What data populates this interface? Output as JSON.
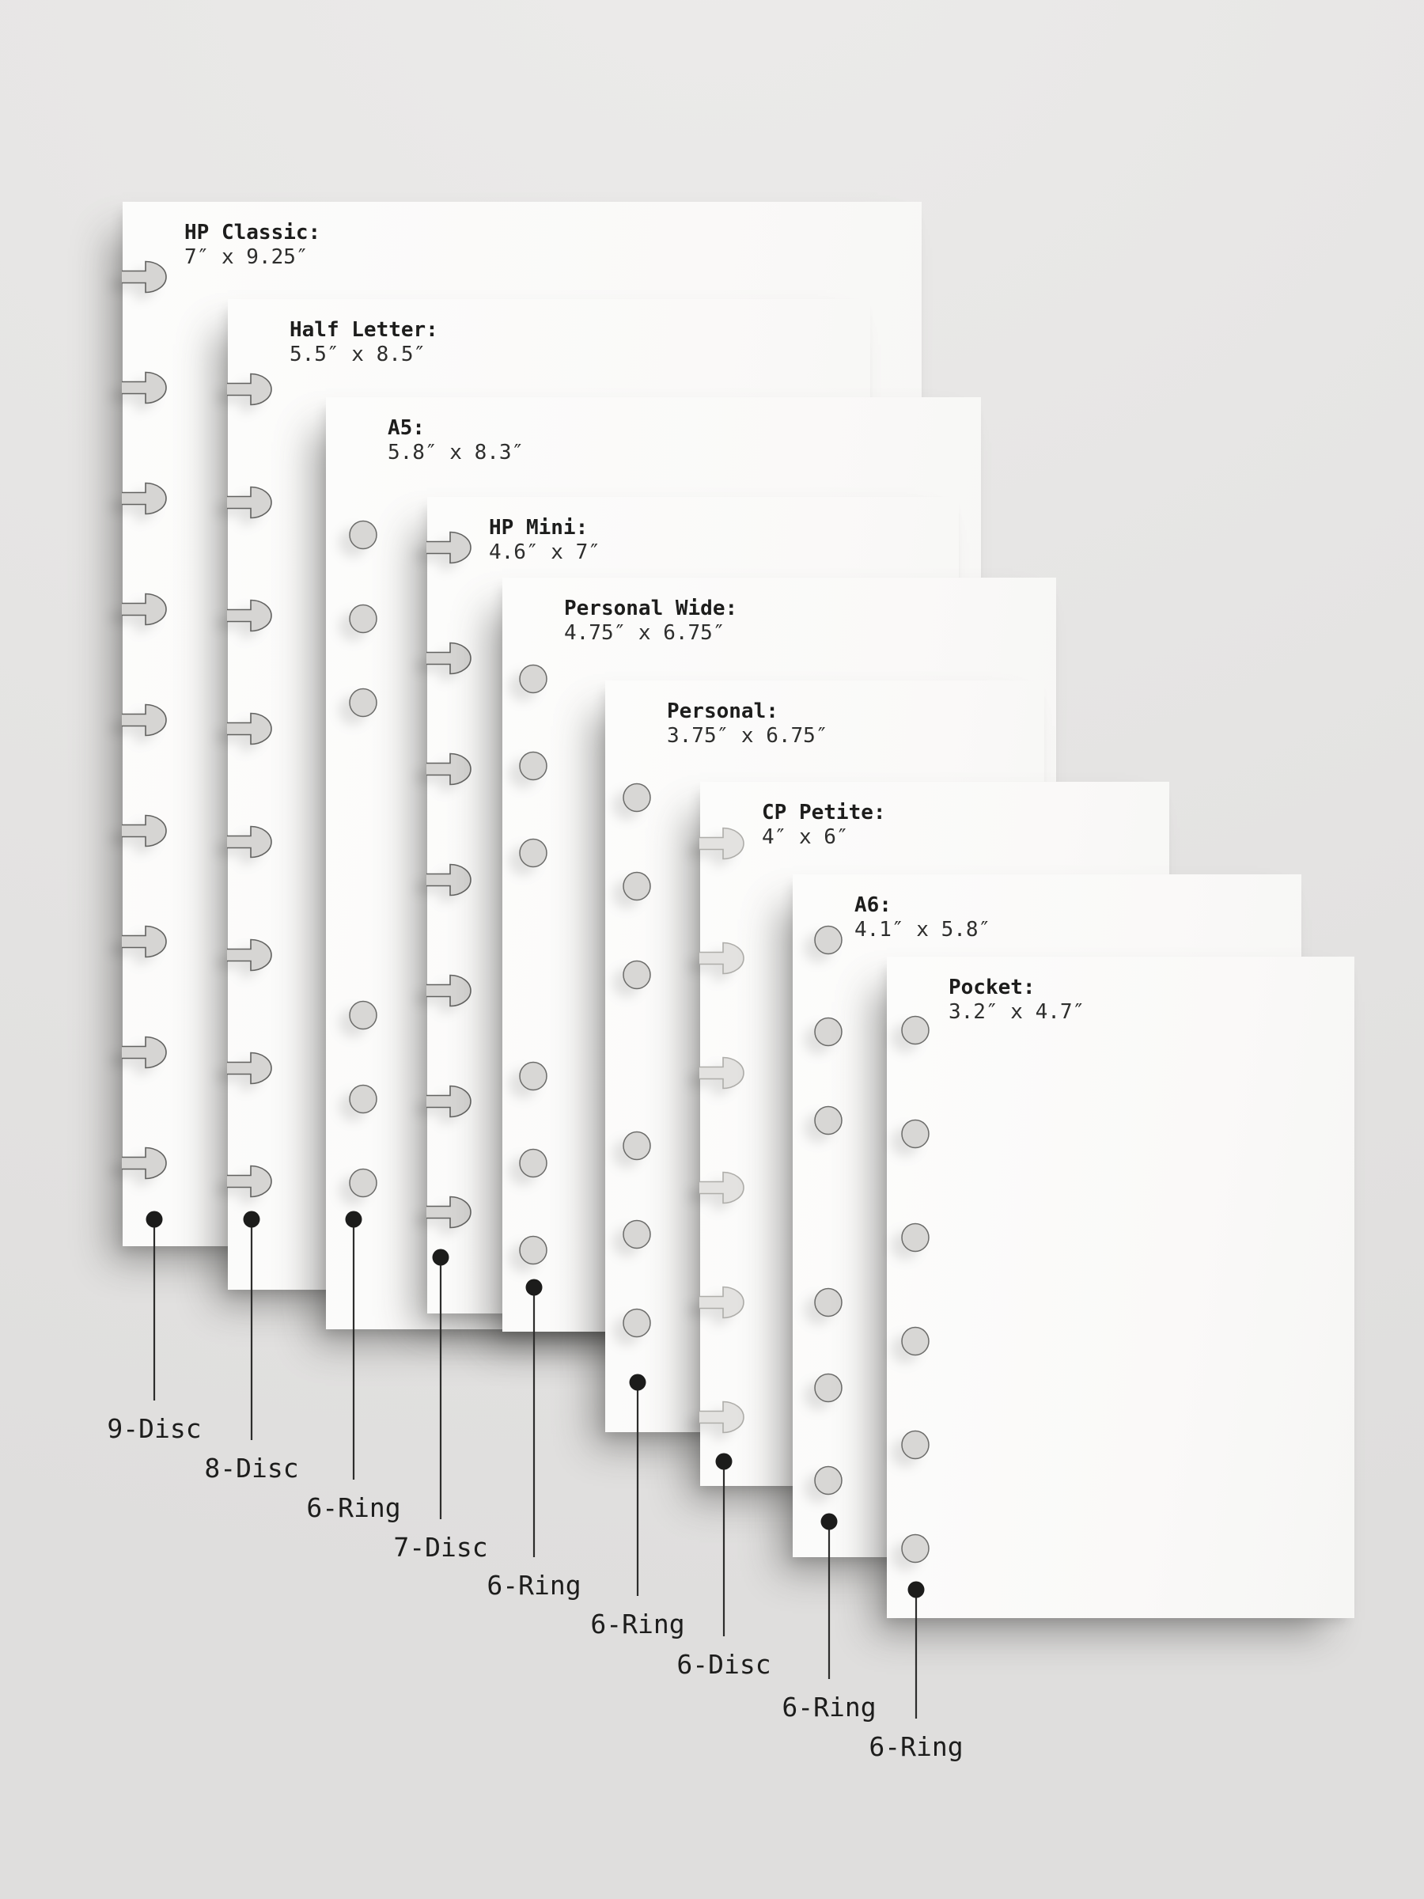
{
  "diagram": {
    "description_kind": "planner-paper-size-comparison",
    "colors": {
      "background": "#e5e4e3",
      "paper": "#fbfbfa",
      "hole_fill": "#d6d5d3",
      "hole_fill_light": "#e3e2e0",
      "hole_stroke": "#626260",
      "leader_line": "#2d2d2c",
      "dot": "#1c1c1b",
      "text": "#1d1d1c"
    }
  },
  "sheets": [
    {
      "name": "HP Classic:",
      "dimensions": "7″ x 9.25″",
      "binding": "9-Disc",
      "hole_type": "disc",
      "hole_count": 9
    },
    {
      "name": "Half Letter:",
      "dimensions": "5.5″ x 8.5″",
      "binding": "8-Disc",
      "hole_type": "disc",
      "hole_count": 8
    },
    {
      "name": "A5:",
      "dimensions": "5.8″ x 8.3″",
      "binding": "6-Ring",
      "hole_type": "ring",
      "hole_count": 6
    },
    {
      "name": "HP Mini:",
      "dimensions": "4.6″ x 7″",
      "binding": "7-Disc",
      "hole_type": "disc",
      "hole_count": 7
    },
    {
      "name": "Personal Wide:",
      "dimensions": "4.75″ x 6.75″",
      "binding": "6-Ring",
      "hole_type": "ring",
      "hole_count": 6
    },
    {
      "name": "Personal:",
      "dimensions": "3.75″ x 6.75″",
      "binding": "6-Ring",
      "hole_type": "ring",
      "hole_count": 6
    },
    {
      "name": "CP Petite:",
      "dimensions": "4″ x 6″",
      "binding": "6-Disc",
      "hole_type": "disc",
      "hole_count": 6
    },
    {
      "name": "A6:",
      "dimensions": "4.1″ x 5.8″",
      "binding": "6-Ring",
      "hole_type": "ring",
      "hole_count": 6
    },
    {
      "name": "Pocket:",
      "dimensions": "3.2″ x 4.7″",
      "binding": "6-Ring",
      "hole_type": "ring",
      "hole_count": 6
    }
  ]
}
